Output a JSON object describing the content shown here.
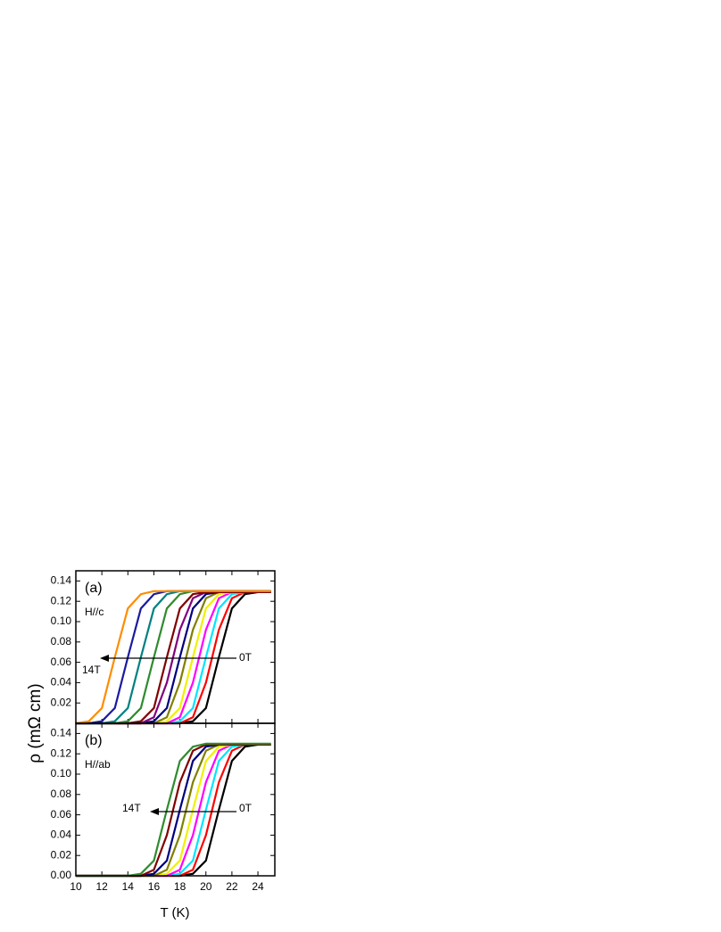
{
  "chart_data": [
    {
      "type": "line",
      "panel_label": "(a)",
      "field_label": "H//c",
      "start_label": "0T",
      "end_label": "14T",
      "ylabel": "ρ (mΩ cm)",
      "x": [
        10,
        11,
        12,
        13,
        14,
        15,
        16,
        17,
        18,
        19,
        20,
        21,
        22,
        23,
        24,
        25
      ],
      "xlim": [
        10,
        25.3
      ],
      "xticks": [
        10,
        12,
        14,
        16,
        18,
        20,
        22,
        24
      ],
      "ylim": [
        0,
        0.15
      ],
      "yticks": [
        {
          "value": 0,
          "label": "0.00"
        },
        0.02,
        0.04,
        0.06,
        0.08,
        {
          "value": 0.1,
          "label": "0.10"
        },
        0.12,
        0.14
      ],
      "series": [
        {
          "color": "#000000",
          "values": [
            0,
            0,
            0,
            0,
            0,
            0,
            0,
            0,
            0,
            0.002,
            0.015,
            0.065,
            0.113,
            0.127,
            0.129,
            0.129
          ]
        },
        {
          "color": "#ff0000",
          "values": [
            0,
            0,
            0,
            0,
            0,
            0,
            0,
            0,
            0,
            0.006,
            0.04,
            0.092,
            0.123,
            0.129,
            0.129,
            0.129
          ]
        },
        {
          "color": "#00e5ff",
          "values": [
            0,
            0,
            0,
            0,
            0,
            0,
            0,
            0,
            0.002,
            0.015,
            0.065,
            0.113,
            0.127,
            0.129,
            0.129,
            0.129
          ]
        },
        {
          "color": "#ff00ff",
          "values": [
            0,
            0,
            0,
            0,
            0,
            0,
            0,
            0,
            0.006,
            0.04,
            0.092,
            0.123,
            0.129,
            0.129,
            0.129,
            0.129
          ]
        },
        {
          "color": "#f0f000",
          "values": [
            0,
            0,
            0,
            0,
            0,
            0,
            0,
            0.002,
            0.015,
            0.065,
            0.113,
            0.127,
            0.129,
            0.129,
            0.129,
            0.129
          ]
        },
        {
          "color": "#808000",
          "values": [
            0,
            0,
            0,
            0,
            0,
            0,
            0,
            0.006,
            0.04,
            0.092,
            0.123,
            0.129,
            0.129,
            0.129,
            0.129,
            0.129
          ]
        },
        {
          "color": "#000080",
          "values": [
            0,
            0,
            0,
            0,
            0,
            0,
            0.002,
            0.015,
            0.065,
            0.113,
            0.127,
            0.129,
            0.129,
            0.129,
            0.129,
            0.129
          ]
        },
        {
          "color": "#800080",
          "values": [
            0,
            0,
            0,
            0,
            0,
            0,
            0.006,
            0.04,
            0.092,
            0.123,
            0.129,
            0.129,
            0.129,
            0.129,
            0.129,
            0.129
          ]
        },
        {
          "color": "#800000",
          "values": [
            0,
            0,
            0,
            0,
            0,
            0.002,
            0.015,
            0.065,
            0.113,
            0.127,
            0.129,
            0.129,
            0.129,
            0.129,
            0.129,
            0.129
          ]
        },
        {
          "color": "#2e8b2e",
          "values": [
            0,
            0,
            0,
            0,
            0.002,
            0.015,
            0.065,
            0.113,
            0.127,
            0.13,
            0.13,
            0.13,
            0.13,
            0.13,
            0.13,
            0.13
          ]
        },
        {
          "color": "#008080",
          "values": [
            0,
            0,
            0,
            0.002,
            0.015,
            0.065,
            0.113,
            0.127,
            0.13,
            0.13,
            0.13,
            0.13,
            0.13,
            0.13,
            0.13,
            0.13
          ]
        },
        {
          "color": "#1a1aa0",
          "values": [
            0,
            0,
            0.002,
            0.015,
            0.065,
            0.113,
            0.127,
            0.13,
            0.13,
            0.13,
            0.13,
            0.13,
            0.13,
            0.13,
            0.13,
            0.13
          ]
        },
        {
          "color": "#ff8c00",
          "values": [
            0,
            0.002,
            0.015,
            0.065,
            0.113,
            0.127,
            0.13,
            0.13,
            0.13,
            0.13,
            0.13,
            0.13,
            0.13,
            0.13,
            0.13,
            0.13
          ]
        }
      ]
    },
    {
      "type": "line",
      "panel_label": "(b)",
      "field_label": "H//ab",
      "start_label": "0T",
      "end_label": "14T",
      "xlabel": "T (K)",
      "x": [
        10,
        11,
        12,
        13,
        14,
        15,
        16,
        17,
        18,
        19,
        20,
        21,
        22,
        23,
        24,
        25
      ],
      "xlim": [
        10,
        25.3
      ],
      "xticks": [
        10,
        12,
        14,
        16,
        18,
        20,
        22,
        24
      ],
      "ylim": [
        0,
        0.15
      ],
      "yticks": [
        {
          "value": 0,
          "label": "0.00"
        },
        0.02,
        0.04,
        0.06,
        0.08,
        {
          "value": 0.1,
          "label": "0.10"
        },
        0.12,
        0.14
      ],
      "series": [
        {
          "color": "#000000",
          "values": [
            0,
            0,
            0,
            0,
            0,
            0,
            0,
            0,
            0,
            0.002,
            0.015,
            0.065,
            0.113,
            0.127,
            0.129,
            0.129
          ]
        },
        {
          "color": "#ff0000",
          "values": [
            0,
            0,
            0,
            0,
            0,
            0,
            0,
            0,
            0,
            0.006,
            0.04,
            0.092,
            0.123,
            0.129,
            0.129,
            0.129
          ]
        },
        {
          "color": "#00e5ff",
          "values": [
            0,
            0,
            0,
            0,
            0,
            0,
            0,
            0,
            0.002,
            0.015,
            0.065,
            0.113,
            0.127,
            0.129,
            0.129,
            0.129
          ]
        },
        {
          "color": "#ff00ff",
          "values": [
            0,
            0,
            0,
            0,
            0,
            0,
            0,
            0,
            0.006,
            0.04,
            0.092,
            0.123,
            0.129,
            0.129,
            0.129,
            0.129
          ]
        },
        {
          "color": "#f0f000",
          "values": [
            0,
            0,
            0,
            0,
            0,
            0,
            0,
            0.002,
            0.015,
            0.065,
            0.113,
            0.127,
            0.129,
            0.129,
            0.129,
            0.129
          ]
        },
        {
          "color": "#808000",
          "values": [
            0,
            0,
            0,
            0,
            0,
            0,
            0,
            0.006,
            0.04,
            0.092,
            0.123,
            0.129,
            0.129,
            0.129,
            0.129,
            0.129
          ]
        },
        {
          "color": "#000080",
          "values": [
            0,
            0,
            0,
            0,
            0,
            0,
            0.002,
            0.015,
            0.065,
            0.113,
            0.127,
            0.129,
            0.129,
            0.129,
            0.129,
            0.129
          ]
        },
        {
          "color": "#800000",
          "values": [
            0,
            0,
            0,
            0,
            0,
            0,
            0.006,
            0.04,
            0.092,
            0.123,
            0.129,
            0.129,
            0.129,
            0.129,
            0.129,
            0.129
          ]
        },
        {
          "color": "#2e8b2e",
          "values": [
            0,
            0,
            0,
            0,
            0,
            0.002,
            0.015,
            0.065,
            0.113,
            0.127,
            0.13,
            0.13,
            0.13,
            0.13,
            0.13,
            0.13
          ]
        }
      ]
    }
  ]
}
